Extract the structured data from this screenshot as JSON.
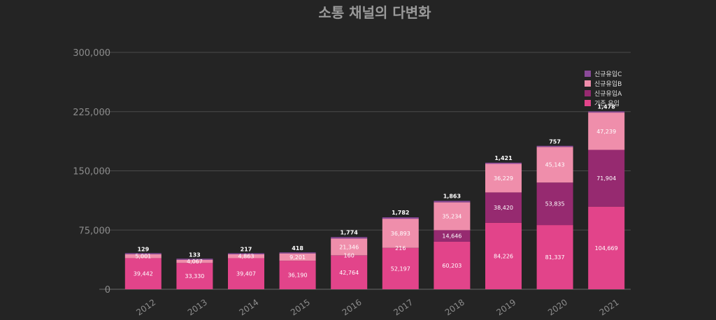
{
  "chart_data": {
    "type": "bar",
    "stacked": true,
    "title": "소통 채널의 다변화",
    "xlabel": "",
    "ylabel": "",
    "ylim": [
      0,
      300000
    ],
    "yticks": [
      0,
      75000,
      150000,
      225000,
      300000
    ],
    "ytick_labels": [
      "0",
      "75,000",
      "150,000",
      "225,000",
      "300,000"
    ],
    "grid": true,
    "legend_position": "top-right",
    "categories": [
      "2012",
      "2013",
      "2014",
      "2015",
      "2016",
      "2017",
      "2018",
      "2019",
      "2020",
      "2021"
    ],
    "series": [
      {
        "name": "기존 유입",
        "color": "#e2448a",
        "values": [
          39442,
          33330,
          39407,
          36190,
          42764,
          52197,
          60203,
          84226,
          81337,
          104669
        ],
        "labels": [
          "39,442",
          "33,330",
          "39,407",
          "36,190",
          "42,764",
          "52,197",
          "60,203",
          "84,226",
          "81,337",
          "104,669"
        ]
      },
      {
        "name": "신규유입A",
        "color": "#962a70",
        "values": [
          0,
          0,
          0,
          0,
          160,
          216,
          14646,
          38420,
          53835,
          71904
        ],
        "labels": [
          "",
          "",
          "",
          "",
          "160",
          "216",
          "14,646",
          "38,420",
          "53,835",
          "71,904"
        ]
      },
      {
        "name": "신규유입B",
        "color": "#ef8eab",
        "values": [
          5001,
          4067,
          4863,
          9201,
          21346,
          36893,
          35234,
          36229,
          45143,
          47239
        ],
        "labels": [
          "5,001",
          "4,067",
          "4,863",
          "9,201",
          "21,346",
          "36,893",
          "35,234",
          "36,229",
          "45,143",
          "47,239"
        ]
      },
      {
        "name": "신규유입C",
        "color": "#8a4a99",
        "values": [
          129,
          133,
          217,
          418,
          1774,
          1782,
          1863,
          1421,
          757,
          1478
        ],
        "labels": [
          "129",
          "133",
          "217",
          "418",
          "1,774",
          "1,782",
          "1,863",
          "1,421",
          "757",
          "1,478"
        ]
      }
    ]
  }
}
